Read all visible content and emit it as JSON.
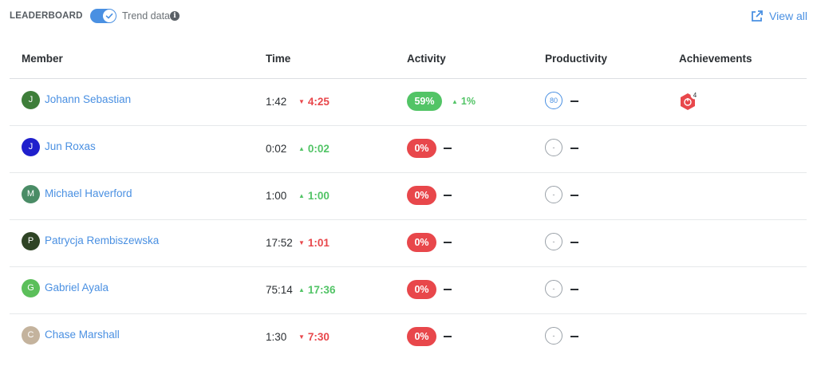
{
  "header": {
    "title": "LEADERBOARD",
    "trend_label": "Trend data",
    "info_glyph": "i",
    "view_all": "View all",
    "toggle_on": true
  },
  "columns": {
    "member": "Member",
    "time": "Time",
    "activity": "Activity",
    "productivity": "Productivity",
    "achievements": "Achievements"
  },
  "colors": {
    "accent": "#4a90e2",
    "up": "#52c466",
    "down": "#e8474b"
  },
  "rows": [
    {
      "initial": "J",
      "avatar_color": "#3e7e3a",
      "name": "Johann Sebastian",
      "time": "1:42",
      "time_trend_dir": "down",
      "time_trend": "4:25",
      "activity": "59%",
      "activity_color": "#52c466",
      "activity_trend": "1%",
      "productivity": "80",
      "achievement_count": "4"
    },
    {
      "initial": "J",
      "avatar_color": "#1f1fcc",
      "name": "Jun Roxas",
      "time": "0:02",
      "time_trend_dir": "up",
      "time_trend": "0:02",
      "activity": "0%",
      "activity_color": "#e8474b",
      "productivity": "-"
    },
    {
      "initial": "M",
      "avatar_color": "#4a8c66",
      "name": "Michael Haverford",
      "time": "1:00",
      "time_trend_dir": "up",
      "time_trend": "1:00",
      "activity": "0%",
      "activity_color": "#e8474b",
      "productivity": "-"
    },
    {
      "initial": "P",
      "avatar_color": "#2f4425",
      "name": "Patrycja Rembiszewska",
      "time": "17:52",
      "time_trend_dir": "down",
      "time_trend": "1:01",
      "activity": "0%",
      "activity_color": "#e8474b",
      "productivity": "-"
    },
    {
      "initial": "G",
      "avatar_color": "#5bbf5a",
      "name": "Gabriel Ayala",
      "time": "75:14",
      "time_trend_dir": "up",
      "time_trend": "17:36",
      "activity": "0%",
      "activity_color": "#e8474b",
      "productivity": "-"
    },
    {
      "initial": "C",
      "avatar_color": "#c4b39d",
      "name": "Chase Marshall",
      "time": "1:30",
      "time_trend_dir": "down",
      "time_trend": "7:30",
      "activity": "0%",
      "activity_color": "#e8474b",
      "productivity": "-"
    }
  ]
}
